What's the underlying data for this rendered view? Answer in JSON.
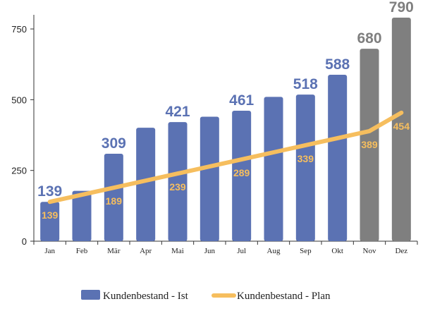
{
  "chart_data": {
    "type": "bar",
    "categories": [
      "Jan",
      "Feb",
      "Mär",
      "Apr",
      "Mai",
      "Jun",
      "Jul",
      "Aug",
      "Sep",
      "Okt",
      "Nov",
      "Dez"
    ],
    "series": [
      {
        "name": "Kundenbestand - Ist",
        "kind": "bar",
        "values": [
          139,
          178,
          309,
          401,
          421,
          440,
          461,
          510,
          518,
          588,
          680,
          790
        ],
        "data_labels": [
          "139",
          "",
          "309",
          "",
          "421",
          "",
          "461",
          "",
          "518",
          "588",
          "680",
          "790"
        ],
        "colors": [
          "#5B72B3",
          "#5B72B3",
          "#5B72B3",
          "#5B72B3",
          "#5B72B3",
          "#5B72B3",
          "#5B72B3",
          "#5B72B3",
          "#5B72B3",
          "#5B72B3",
          "#7F7F7F",
          "#7F7F7F"
        ]
      },
      {
        "name": "Kundenbestand - Plan",
        "kind": "line",
        "values": [
          139,
          164,
          189,
          214,
          239,
          264,
          289,
          314,
          339,
          364,
          389,
          454
        ],
        "data_labels": [
          "139",
          "",
          "189",
          "",
          "239",
          "",
          "289",
          "",
          "339",
          "",
          "389",
          "454"
        ],
        "color": "#F6BE5E"
      }
    ],
    "yticks": [
      "0",
      "250",
      "500",
      "750"
    ],
    "ylim": [
      0,
      790
    ],
    "grid": false,
    "legend": "bottom",
    "colors": {
      "actual": "#5B72B3",
      "forecast": "#7F7F7F",
      "plan": "#F6BE5E",
      "actual_label": "#5B72B3",
      "forecast_label": "#7F7F7F"
    }
  }
}
